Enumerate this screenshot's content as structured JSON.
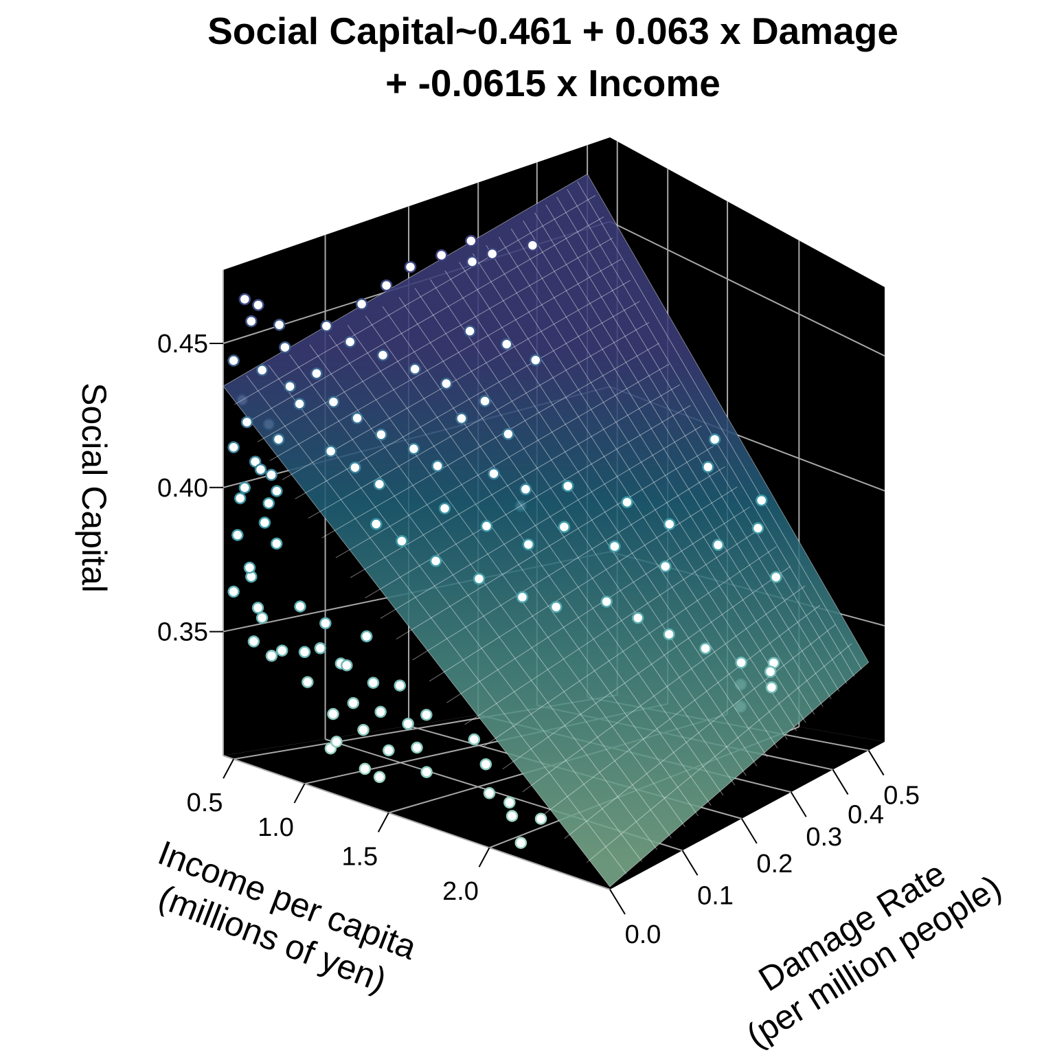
{
  "chart_data": {
    "type": "scatter",
    "title_lines": [
      "Social Capital~0.461 + 0.063 x Damage",
      "+ -0.0615 x Income"
    ],
    "xlabel_lines": [
      "Income per capita",
      "(millions of yen)"
    ],
    "ylabel_lines": [
      "Damage Rate",
      "(per million people)"
    ],
    "zlabel": "Social Capital",
    "x_ticks": [
      "0.5",
      "1.0",
      "1.5",
      "2.0"
    ],
    "x_tick_values": [
      0.5,
      1.0,
      1.5,
      2.0
    ],
    "y_ticks": [
      "0.0",
      "0.1",
      "0.2",
      "0.3",
      "0.4",
      "0.5"
    ],
    "y_tick_values": [
      0.0,
      0.1,
      0.2,
      0.3,
      0.4,
      0.5
    ],
    "z_ticks": [
      "0.35",
      "0.40",
      "0.45"
    ],
    "z_tick_values": [
      0.35,
      0.4,
      0.45
    ],
    "xlim": [
      0.42,
      2.49
    ],
    "ylim": [
      0.0,
      0.55
    ],
    "zlim": [
      0.307,
      0.4755
    ],
    "grid": true,
    "fit_plane": {
      "intercept": 0.461,
      "coef_damage": 0.063,
      "coef_income": -0.0615,
      "x_range": [
        0.42,
        2.49
      ],
      "y_range": [
        0.0,
        0.5
      ]
    },
    "colors": {
      "panel": "#000000",
      "grid": "#a8a8a8",
      "low": "#a6dcc6",
      "mid": "#3a98a6",
      "high": "#3e3f80"
    },
    "points_format": [
      "income",
      "damage",
      "social_capital"
    ],
    "points": [
      [
        0.5,
        0.01,
        0.465
      ],
      [
        0.52,
        0.02,
        0.462
      ],
      [
        0.55,
        0.01,
        0.458
      ],
      [
        0.6,
        0.03,
        0.455
      ],
      [
        0.5,
        0.0,
        0.445
      ],
      [
        0.55,
        0.02,
        0.44
      ],
      [
        0.48,
        0.01,
        0.43
      ],
      [
        0.6,
        0.0,
        0.425
      ],
      [
        0.52,
        0.03,
        0.42
      ],
      [
        0.5,
        0.0,
        0.415
      ],
      [
        0.58,
        0.01,
        0.41
      ],
      [
        0.62,
        0.02,
        0.405
      ],
      [
        0.5,
        0.01,
        0.4
      ],
      [
        0.55,
        0.0,
        0.398
      ],
      [
        0.6,
        0.02,
        0.395
      ],
      [
        0.65,
        0.01,
        0.39
      ],
      [
        0.53,
        0.0,
        0.385
      ],
      [
        0.58,
        0.03,
        0.38
      ],
      [
        0.62,
        0.0,
        0.375
      ],
      [
        0.55,
        0.01,
        0.37
      ],
      [
        0.5,
        0.0,
        0.365
      ],
      [
        0.6,
        0.01,
        0.36
      ],
      [
        0.55,
        0.02,
        0.355
      ],
      [
        0.65,
        0.0,
        0.35
      ],
      [
        0.7,
        0.01,
        0.345
      ],
      [
        0.68,
        0.03,
        0.435
      ],
      [
        0.72,
        0.02,
        0.45
      ],
      [
        0.7,
        0.0,
        0.41
      ],
      [
        0.75,
        0.01,
        0.42
      ],
      [
        0.66,
        0.02,
        0.4
      ],
      [
        0.8,
        0.05,
        0.455
      ],
      [
        0.85,
        0.08,
        0.46
      ],
      [
        0.9,
        0.1,
        0.465
      ],
      [
        0.95,
        0.12,
        0.47
      ],
      [
        1.0,
        0.15,
        0.472
      ],
      [
        1.05,
        0.18,
        0.475
      ],
      [
        1.1,
        0.2,
        0.47
      ],
      [
        0.9,
        0.06,
        0.45
      ],
      [
        1.0,
        0.08,
        0.445
      ],
      [
        1.1,
        0.1,
        0.44
      ],
      [
        1.2,
        0.12,
        0.435
      ],
      [
        0.8,
        0.04,
        0.44
      ],
      [
        0.85,
        0.05,
        0.43
      ],
      [
        0.95,
        0.06,
        0.425
      ],
      [
        1.05,
        0.07,
        0.42
      ],
      [
        1.15,
        0.09,
        0.415
      ],
      [
        1.25,
        0.1,
        0.41
      ],
      [
        0.75,
        0.03,
        0.43
      ],
      [
        0.9,
        0.04,
        0.415
      ],
      [
        1.0,
        0.05,
        0.41
      ],
      [
        1.1,
        0.06,
        0.405
      ],
      [
        1.3,
        0.12,
        0.425
      ],
      [
        1.2,
        0.15,
        0.45
      ],
      [
        1.3,
        0.18,
        0.445
      ],
      [
        1.4,
        0.2,
        0.44
      ],
      [
        0.95,
        0.2,
        0.465
      ],
      [
        1.15,
        0.25,
        0.47
      ],
      [
        1.35,
        0.14,
        0.43
      ],
      [
        1.45,
        0.15,
        0.42
      ],
      [
        1.5,
        0.12,
        0.41
      ],
      [
        1.6,
        0.14,
        0.405
      ],
      [
        1.4,
        0.08,
        0.4
      ],
      [
        1.55,
        0.1,
        0.395
      ],
      [
        1.7,
        0.12,
        0.39
      ],
      [
        1.2,
        0.04,
        0.395
      ],
      [
        1.3,
        0.05,
        0.39
      ],
      [
        1.45,
        0.06,
        0.385
      ],
      [
        1.6,
        0.08,
        0.38
      ],
      [
        1.75,
        0.1,
        0.375
      ],
      [
        1.85,
        0.12,
        0.372
      ],
      [
        0.9,
        0.01,
        0.365
      ],
      [
        1.0,
        0.02,
        0.36
      ],
      [
        1.1,
        0.0,
        0.355
      ],
      [
        1.2,
        0.01,
        0.35
      ],
      [
        1.3,
        0.02,
        0.345
      ],
      [
        1.0,
        0.0,
        0.352
      ],
      [
        1.1,
        0.02,
        0.348
      ],
      [
        1.2,
        0.03,
        0.358
      ],
      [
        1.3,
        0.0,
        0.34
      ],
      [
        1.4,
        0.01,
        0.338
      ],
      [
        1.5,
        0.02,
        0.335
      ],
      [
        1.6,
        0.01,
        0.33
      ],
      [
        1.7,
        0.0,
        0.325
      ],
      [
        1.4,
        0.03,
        0.345
      ],
      [
        1.5,
        0.0,
        0.328
      ],
      [
        1.6,
        0.02,
        0.34
      ],
      [
        1.8,
        0.03,
        0.335
      ],
      [
        1.3,
        0.01,
        0.33
      ],
      [
        1.2,
        0.0,
        0.325
      ],
      [
        1.1,
        0.01,
        0.32
      ],
      [
        1.25,
        0.02,
        0.315
      ],
      [
        1.45,
        0.0,
        0.318
      ],
      [
        0.95,
        0.01,
        0.34
      ],
      [
        0.85,
        0.0,
        0.35
      ],
      [
        1.05,
        0.02,
        0.33
      ],
      [
        1.9,
        0.02,
        0.33
      ],
      [
        2.0,
        0.0,
        0.325
      ],
      [
        2.05,
        0.01,
        0.322
      ],
      [
        2.1,
        0.0,
        0.32
      ],
      [
        2.15,
        0.02,
        0.318
      ],
      [
        2.1,
        0.01,
        0.31
      ],
      [
        1.3,
        0.2,
        0.39
      ],
      [
        1.5,
        0.22,
        0.385
      ],
      [
        1.7,
        0.25,
        0.38
      ],
      [
        1.9,
        0.28,
        0.375
      ],
      [
        1.6,
        0.3,
        0.39
      ],
      [
        1.8,
        0.32,
        0.385
      ],
      [
        2.0,
        0.35,
        0.38
      ],
      [
        2.1,
        0.4,
        0.385
      ],
      [
        1.4,
        0.25,
        0.395
      ],
      [
        1.9,
        0.18,
        0.37
      ],
      [
        2.0,
        0.2,
        0.365
      ],
      [
        2.1,
        0.22,
        0.36
      ],
      [
        2.2,
        0.25,
        0.355
      ],
      [
        2.3,
        0.28,
        0.35
      ],
      [
        2.2,
        0.4,
        0.37
      ],
      [
        2.0,
        0.45,
        0.39
      ],
      [
        2.3,
        0.35,
        0.345
      ],
      [
        2.25,
        0.3,
        0.34
      ],
      [
        2.35,
        0.32,
        0.345
      ],
      [
        2.4,
        0.3,
        0.342
      ],
      [
        2.2,
        0.32,
        0.33
      ],
      [
        1.8,
        0.4,
        0.4
      ],
      [
        1.7,
        0.45,
        0.405
      ]
    ]
  }
}
